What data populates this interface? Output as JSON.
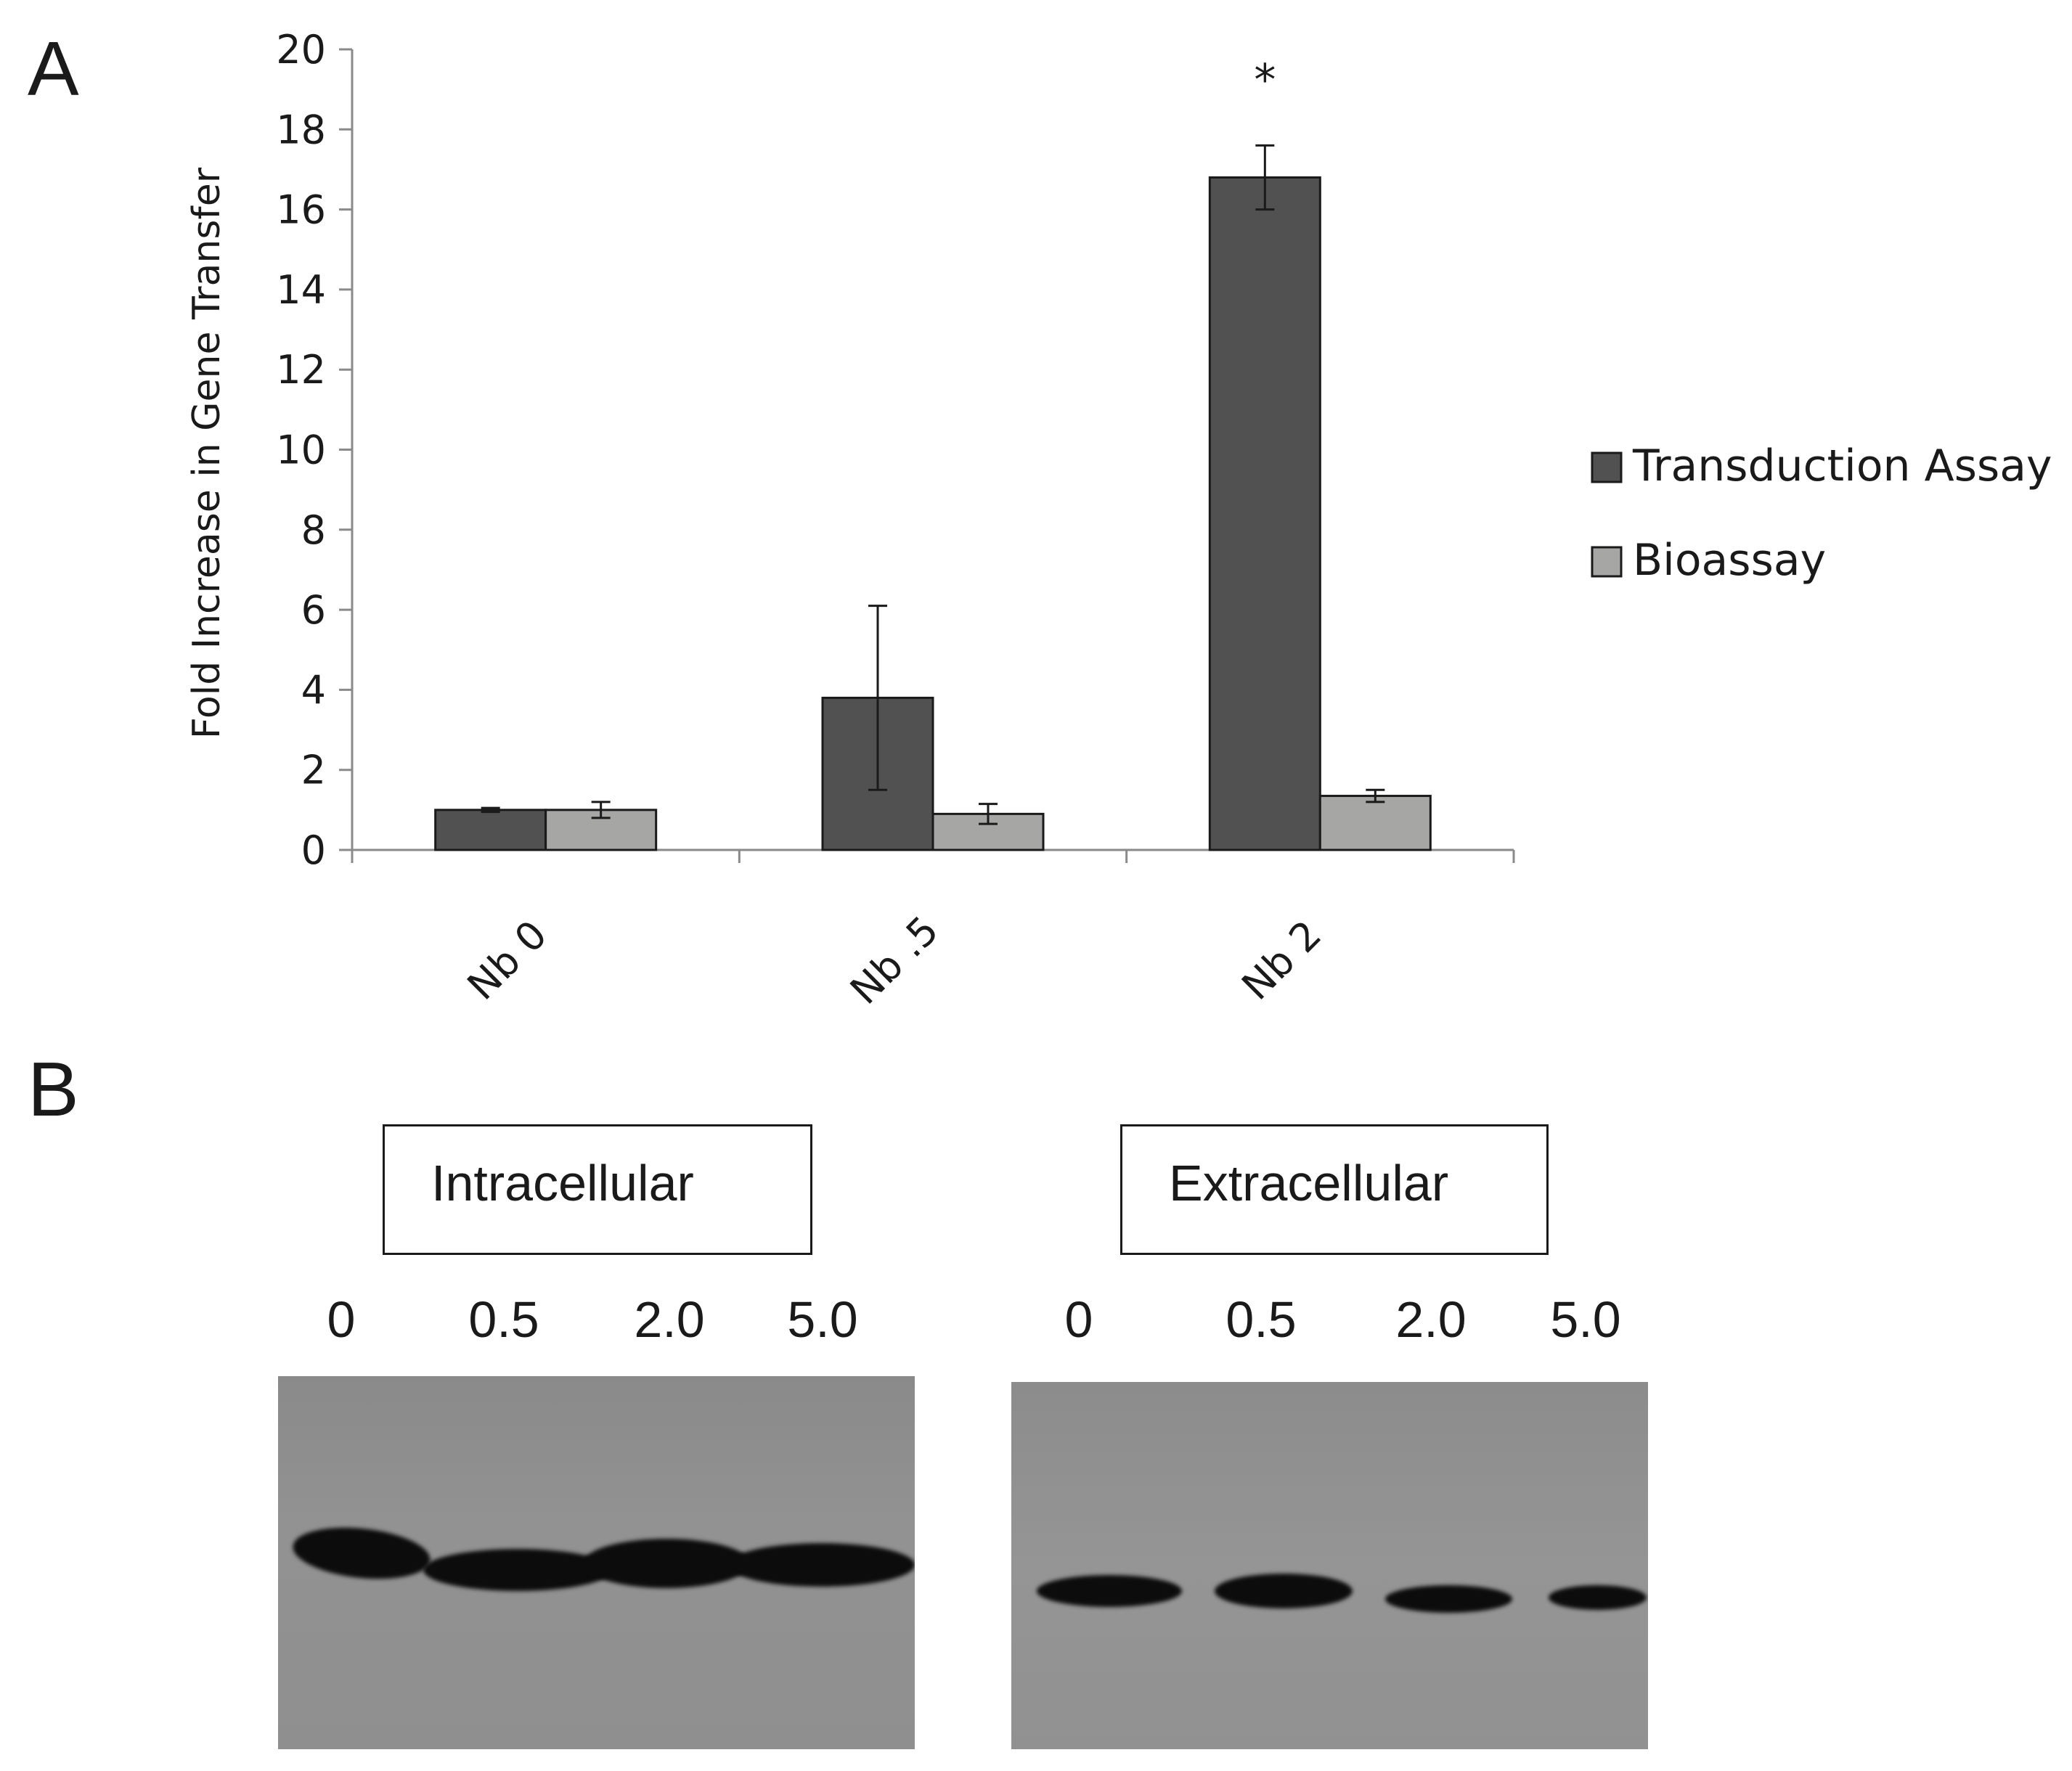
{
  "panel_a_label": "A",
  "panel_b_label": "B",
  "chart_data": {
    "type": "bar",
    "title": "",
    "xlabel": "",
    "ylabel": "Fold Increase in Gene Transfer",
    "ylim": [
      0,
      20
    ],
    "yticks": [
      0,
      2,
      4,
      6,
      8,
      10,
      12,
      14,
      16,
      18,
      20
    ],
    "categories": [
      "Nb 0",
      "Nb .5",
      "Nb 2"
    ],
    "series": [
      {
        "name": "Transduction Assay",
        "color": "#505150",
        "values": [
          1.0,
          3.8,
          16.8
        ],
        "errors": [
          0.05,
          2.3,
          0.8
        ]
      },
      {
        "name": "Bioassay",
        "color": "#a6a7a5",
        "values": [
          1.0,
          0.9,
          1.35
        ],
        "errors": [
          0.2,
          0.25,
          0.15
        ]
      }
    ],
    "annotations": [
      {
        "category": "Nb 2",
        "series": "Transduction Assay",
        "text": "*"
      }
    ],
    "legend_position": "right"
  },
  "blot": {
    "intracellular": {
      "title": "Intracellular",
      "lanes": [
        "0",
        "0.5",
        "2.0",
        "5.0"
      ]
    },
    "extracellular": {
      "title": "Extracellular",
      "lanes": [
        "0",
        "0.5",
        "2.0",
        "5.0"
      ]
    }
  }
}
